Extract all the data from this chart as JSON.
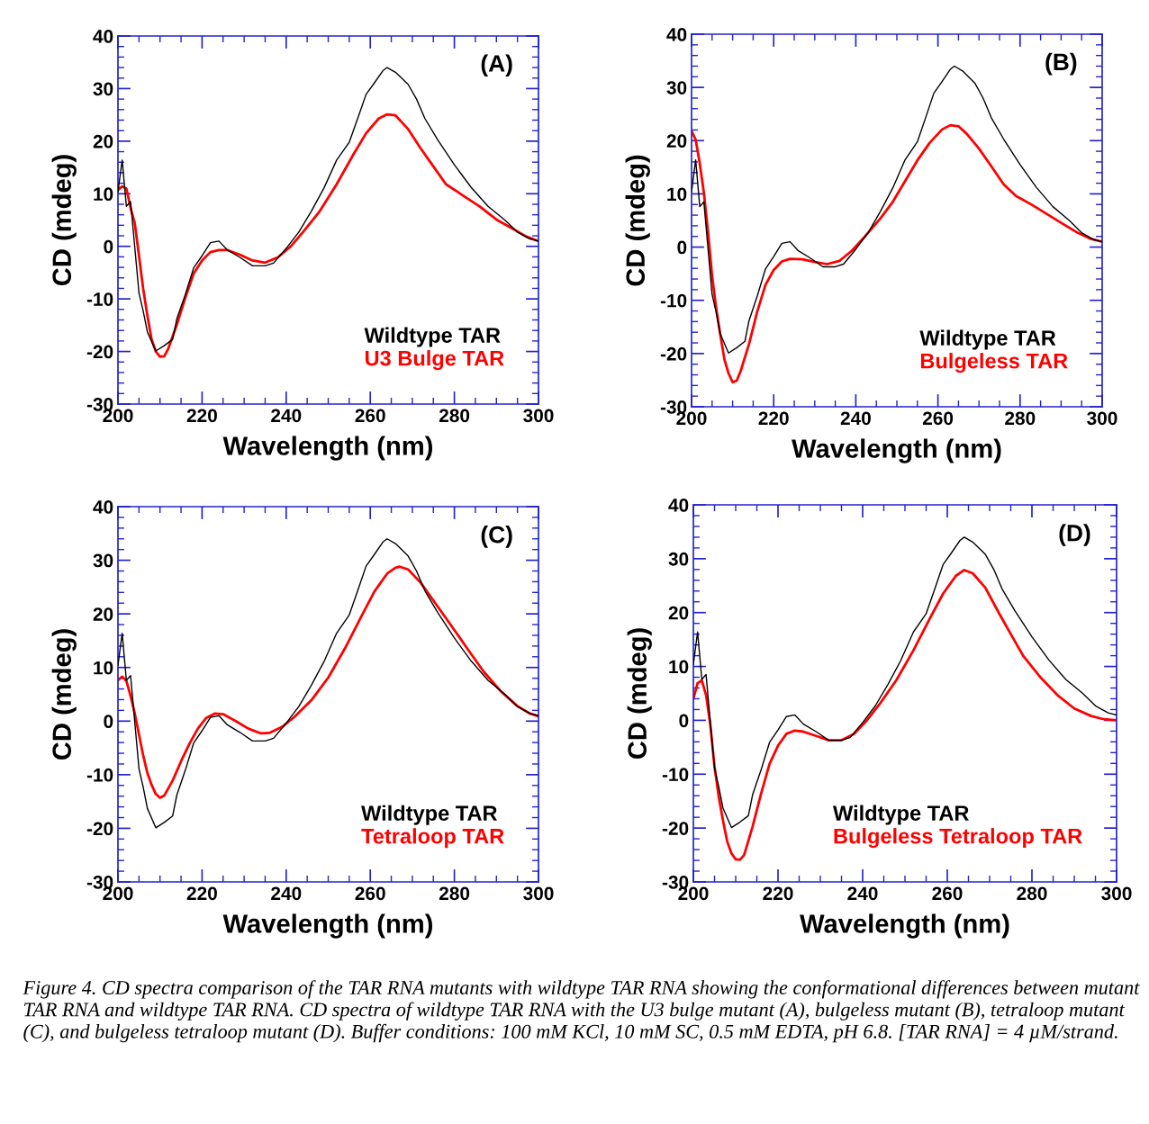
{
  "chart_data": [
    {
      "type": "line",
      "xlabel": "Wavelength (nm)",
      "ylabel": "CD (mdeg)",
      "xlim": [
        200,
        300
      ],
      "ylim": [
        -30,
        40
      ],
      "xticks": [
        200,
        220,
        240,
        260,
        280,
        300
      ],
      "yticks": [
        -30,
        -20,
        -10,
        0,
        10,
        20,
        30,
        40
      ],
      "legend": "bottom right",
      "annotations": [
        "(A)"
      ],
      "series": [
        {
          "name": "Wildtype TAR",
          "color": "#000000",
          "x": [
            200,
            201,
            202,
            203,
            205,
            206,
            207,
            209,
            211,
            213,
            214,
            216,
            218,
            220,
            222,
            224,
            226,
            229,
            232,
            235,
            237,
            240,
            243,
            246,
            249,
            252,
            255,
            257,
            259,
            261,
            263,
            264,
            266,
            269,
            271,
            273,
            276,
            280,
            284,
            288,
            292,
            295,
            298,
            300
          ],
          "values": [
            10.4,
            16.4,
            7.6,
            8.5,
            -8.9,
            -12.3,
            -16.3,
            -19.9,
            -18.9,
            -17.7,
            -13.8,
            -9.2,
            -4.1,
            -1.8,
            0.7,
            1.0,
            -0.7,
            -2.1,
            -3.7,
            -3.7,
            -3.2,
            -0.4,
            2.7,
            6.7,
            11.1,
            16.4,
            19.8,
            24.3,
            28.9,
            31.1,
            33.4,
            34.0,
            33.1,
            30.8,
            28.0,
            24.3,
            20.3,
            15.5,
            11.2,
            7.6,
            5.0,
            2.7,
            1.4,
            1.0
          ]
        },
        {
          "name": "U3 Bulge TAR",
          "color": "#ff0000",
          "x": [
            200,
            201,
            202,
            203,
            204,
            205,
            206,
            207,
            208,
            209,
            210,
            211,
            212,
            214,
            216,
            218,
            220,
            222,
            224,
            226,
            229,
            232,
            235,
            238,
            241,
            244,
            248,
            252,
            256,
            259,
            262,
            264,
            266,
            269,
            272,
            275,
            278,
            282,
            286,
            290,
            294,
            297,
            300
          ],
          "values": [
            10.7,
            11.4,
            11.0,
            7.3,
            4.4,
            -1.8,
            -8.1,
            -13.2,
            -17.7,
            -20.0,
            -21.0,
            -20.9,
            -19.4,
            -14.9,
            -9.8,
            -5.2,
            -2.7,
            -1.1,
            -0.7,
            -0.7,
            -1.6,
            -2.7,
            -3.1,
            -2.1,
            -0.1,
            2.7,
            6.7,
            11.8,
            17.5,
            21.5,
            24.3,
            25.1,
            24.9,
            22.3,
            18.6,
            15.2,
            11.8,
            9.7,
            7.6,
            5.1,
            3.3,
            1.9,
            1.0
          ]
        }
      ]
    },
    {
      "type": "line",
      "xlabel": "Wavelength (nm)",
      "ylabel": "CD (mdeg)",
      "xlim": [
        200,
        300
      ],
      "ylim": [
        -30,
        40
      ],
      "xticks": [
        200,
        220,
        240,
        260,
        280,
        300
      ],
      "yticks": [
        -30,
        -20,
        -10,
        0,
        10,
        20,
        30,
        40
      ],
      "legend": "bottom right",
      "annotations": [
        "(B)"
      ],
      "series": [
        {
          "name": "Wildtype TAR",
          "color": "#000000",
          "x": [
            200,
            201,
            202,
            203,
            205,
            206,
            207,
            209,
            211,
            213,
            214,
            216,
            218,
            220,
            222,
            224,
            226,
            229,
            232,
            235,
            237,
            240,
            243,
            246,
            249,
            252,
            255,
            257,
            259,
            261,
            263,
            264,
            266,
            269,
            271,
            273,
            276,
            280,
            284,
            288,
            292,
            295,
            298,
            300
          ],
          "values": [
            10.4,
            16.4,
            7.6,
            8.5,
            -8.9,
            -12.3,
            -16.3,
            -19.9,
            -18.9,
            -17.7,
            -13.8,
            -9.2,
            -4.1,
            -1.8,
            0.7,
            1.0,
            -0.7,
            -2.1,
            -3.7,
            -3.7,
            -3.2,
            -0.4,
            2.7,
            6.7,
            11.1,
            16.4,
            19.8,
            24.3,
            28.9,
            31.1,
            33.4,
            34.0,
            33.1,
            30.8,
            28.0,
            24.3,
            20.3,
            15.5,
            11.2,
            7.6,
            5.0,
            2.7,
            1.4,
            1.0
          ]
        },
        {
          "name": "Bulgeless TAR",
          "color": "#ff0000",
          "x": [
            200,
            201,
            202,
            203,
            204,
            205,
            206,
            207,
            208,
            209,
            210,
            211,
            212,
            214,
            216,
            218,
            220,
            222,
            224,
            227,
            230,
            233,
            236,
            239,
            242,
            246,
            249,
            252,
            255,
            258,
            261,
            263,
            265,
            267,
            270,
            273,
            276,
            279,
            283,
            287,
            291,
            294,
            297,
            300
          ],
          "values": [
            21.8,
            20.2,
            15.7,
            10.2,
            2.9,
            -5.4,
            -11.5,
            -16.5,
            -21.1,
            -23.7,
            -25.4,
            -25.1,
            -23.2,
            -18.2,
            -12.1,
            -7.1,
            -4.3,
            -2.7,
            -2.2,
            -2.3,
            -2.8,
            -3.2,
            -2.6,
            -0.7,
            1.8,
            5.4,
            8.5,
            12.4,
            16.3,
            19.6,
            22.1,
            22.9,
            22.7,
            21.3,
            18.5,
            15.2,
            11.8,
            9.6,
            7.9,
            6.0,
            4.1,
            2.7,
            1.6,
            1.0
          ]
        }
      ]
    },
    {
      "type": "line",
      "xlabel": "Wavelength (nm)",
      "ylabel": "CD (mdeg)",
      "xlim": [
        200,
        300
      ],
      "ylim": [
        -30,
        40
      ],
      "xticks": [
        200,
        220,
        240,
        260,
        280,
        300
      ],
      "yticks": [
        -30,
        -20,
        -10,
        0,
        10,
        20,
        30,
        40
      ],
      "legend": "bottom right",
      "annotations": [
        "(C)"
      ],
      "series": [
        {
          "name": "Wildtype TAR",
          "color": "#000000",
          "x": [
            200,
            201,
            202,
            203,
            205,
            206,
            207,
            209,
            211,
            213,
            214,
            216,
            218,
            220,
            222,
            224,
            226,
            229,
            232,
            235,
            237,
            240,
            243,
            246,
            249,
            252,
            255,
            257,
            259,
            261,
            263,
            264,
            266,
            269,
            271,
            273,
            276,
            280,
            284,
            288,
            292,
            295,
            298,
            300
          ],
          "values": [
            10.4,
            16.4,
            7.6,
            8.5,
            -8.9,
            -12.3,
            -16.3,
            -19.9,
            -18.9,
            -17.7,
            -13.8,
            -9.2,
            -4.1,
            -1.8,
            0.7,
            1.0,
            -0.7,
            -2.1,
            -3.7,
            -3.7,
            -3.2,
            -0.4,
            2.7,
            6.7,
            11.1,
            16.4,
            19.8,
            24.3,
            28.9,
            31.1,
            33.4,
            34.0,
            33.1,
            30.8,
            28.0,
            24.3,
            20.3,
            15.5,
            11.2,
            7.6,
            5.0,
            2.7,
            1.4,
            1.0
          ]
        },
        {
          "name": "Tetraloop TAR",
          "color": "#ff0000",
          "x": [
            200,
            201,
            202,
            203,
            204,
            205,
            206,
            207,
            208,
            209,
            210,
            211,
            213,
            215,
            217,
            219,
            221,
            223,
            225,
            228,
            231,
            234,
            236,
            239,
            242,
            246,
            250,
            254,
            258,
            261,
            264,
            266,
            267,
            269,
            272,
            275,
            279,
            283,
            287,
            291,
            295,
            298,
            300
          ],
          "values": [
            7.6,
            8.3,
            7.5,
            4.7,
            1.4,
            -2.5,
            -6.4,
            -9.7,
            -11.9,
            -13.6,
            -14.3,
            -13.9,
            -11.1,
            -7.5,
            -4.2,
            -1.4,
            0.6,
            1.4,
            1.3,
            0,
            -1.4,
            -2.3,
            -2.2,
            -1.1,
            0.8,
            3.9,
            8.1,
            13.6,
            19.7,
            24.2,
            27.5,
            28.6,
            28.8,
            28.3,
            25.8,
            22.5,
            18.1,
            13.6,
            9.2,
            5.6,
            2.8,
            1.4,
            0.9
          ]
        }
      ]
    },
    {
      "type": "line",
      "xlabel": "Wavelength (nm)",
      "ylabel": "CD (mdeg)",
      "xlim": [
        200,
        300
      ],
      "ylim": [
        -30,
        40
      ],
      "xticks": [
        200,
        220,
        240,
        260,
        280,
        300
      ],
      "yticks": [
        -30,
        -20,
        -10,
        0,
        10,
        20,
        30,
        40
      ],
      "legend": "bottom right",
      "annotations": [
        "(D)",
        "Figure 4. CD spectra comparison of the TAR RNA mutants with wildtype TAR RNA showing the conformational differences between mutant TAR RNA and wildtype TAR RNA. CD spectra of wildtype TAR RNA with the U3 bulge mutant (A), bulgeless mutant (B), tetraloop mutant (C), and bulgeless tetraloop mutant (D). Buffer conditions: 100 mM KCl, 10 mM SC, 0.5 mM EDTA, pH 6.8. [TAR RNA] = 4 µM/strand."
      ],
      "series": [
        {
          "name": "Wildtype TAR",
          "color": "#000000",
          "x": [
            200,
            201,
            202,
            203,
            205,
            206,
            207,
            209,
            211,
            213,
            214,
            216,
            218,
            220,
            222,
            224,
            226,
            229,
            232,
            235,
            237,
            240,
            243,
            246,
            249,
            252,
            255,
            257,
            259,
            261,
            263,
            264,
            266,
            269,
            271,
            273,
            276,
            280,
            284,
            288,
            292,
            295,
            298,
            300
          ],
          "values": [
            10.4,
            16.4,
            7.6,
            8.5,
            -8.9,
            -12.3,
            -16.3,
            -19.9,
            -18.9,
            -17.7,
            -13.8,
            -9.2,
            -4.1,
            -1.8,
            0.7,
            1.0,
            -0.7,
            -2.1,
            -3.7,
            -3.7,
            -3.2,
            -0.4,
            2.7,
            6.7,
            11.1,
            16.4,
            19.8,
            24.3,
            28.9,
            31.1,
            33.4,
            34.0,
            33.1,
            30.8,
            28.0,
            24.3,
            20.3,
            15.5,
            11.2,
            7.6,
            5.0,
            2.7,
            1.4,
            1.0
          ]
        },
        {
          "name": "Bulgeless Tetraloop TAR",
          "color": "#ff0000",
          "x": [
            200,
            201,
            202,
            203,
            204,
            205,
            206,
            207,
            208,
            209,
            210,
            211,
            212,
            214,
            216,
            218,
            220,
            222,
            224,
            226,
            229,
            232,
            235,
            238,
            241,
            244,
            248,
            252,
            256,
            259,
            262,
            264,
            266,
            269,
            272,
            275,
            278,
            282,
            286,
            290,
            294,
            297,
            300
          ],
          "values": [
            4.0,
            6.9,
            7.4,
            4.7,
            -0.8,
            -8.6,
            -14.2,
            -18.6,
            -22.5,
            -24.7,
            -25.8,
            -25.9,
            -25.0,
            -19.7,
            -13.6,
            -8.1,
            -4.7,
            -2.5,
            -1.9,
            -2.1,
            -2.9,
            -3.7,
            -3.7,
            -2.5,
            0,
            3.0,
            7.5,
            13.0,
            19.1,
            23.5,
            26.8,
            27.9,
            27.3,
            24.6,
            20.2,
            16.0,
            11.9,
            8.0,
            4.7,
            2.2,
            0.8,
            0.2,
            0.0
          ]
        }
      ]
    }
  ]
}
